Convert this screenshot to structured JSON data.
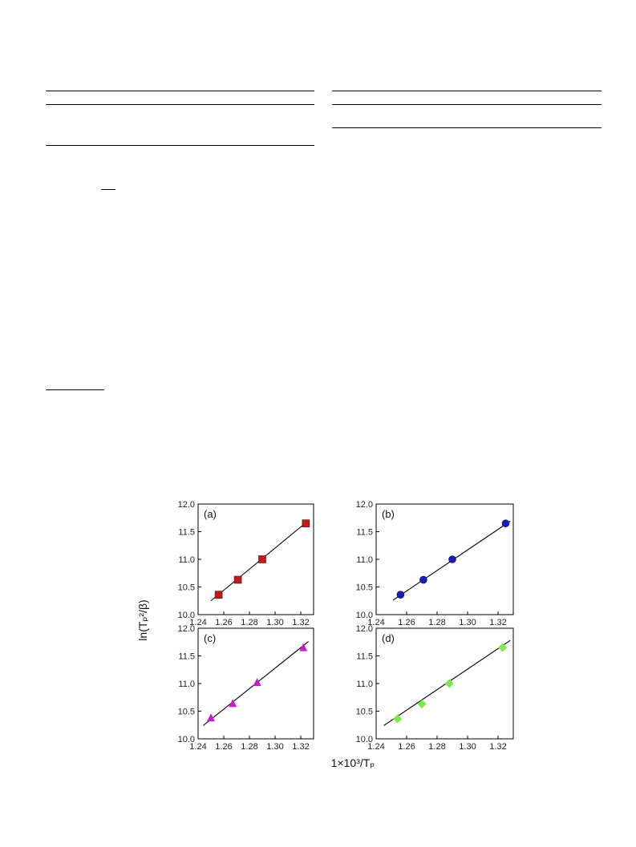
{
  "page": {
    "background": "#ffffff"
  },
  "chart_data": {
    "type": "scatter",
    "xlabel": "1×10³/Tₚ",
    "ylabel": "ln(Tₚ²/β)",
    "xlim": [
      1.24,
      1.33
    ],
    "ylim": [
      10.0,
      12.0
    ],
    "xticks": [
      "1.24",
      "1.26",
      "1.28",
      "1.30",
      "1.32"
    ],
    "yticks": [
      "10.0",
      "10.5",
      "11.0",
      "11.5",
      "12.0"
    ],
    "grid": false,
    "panels": [
      {
        "label": "(a)",
        "marker": "square",
        "color": "#c0191d",
        "x": [
          1.256,
          1.271,
          1.29,
          1.324
        ],
        "y": [
          10.36,
          10.63,
          11.0,
          11.65
        ],
        "fit": {
          "x": [
            1.25,
            1.326
          ],
          "y": [
            10.25,
            11.7
          ]
        }
      },
      {
        "label": "(b)",
        "marker": "circle",
        "color": "#1a1aba",
        "x": [
          1.256,
          1.271,
          1.29,
          1.325
        ],
        "y": [
          10.36,
          10.63,
          11.0,
          11.65
        ],
        "fit": {
          "x": [
            1.251,
            1.328
          ],
          "y": [
            10.26,
            11.69
          ]
        }
      },
      {
        "label": "(c)",
        "marker": "triangle",
        "color": "#c61cd0",
        "x": [
          1.25,
          1.267,
          1.286,
          1.322
        ],
        "y": [
          10.38,
          10.64,
          11.02,
          11.65
        ],
        "fit": {
          "x": [
            1.244,
            1.326
          ],
          "y": [
            10.24,
            11.76
          ]
        }
      },
      {
        "label": "(d)",
        "marker": "diamond",
        "color": "#7ee84a",
        "x": [
          1.254,
          1.27,
          1.288,
          1.323
        ],
        "y": [
          10.36,
          10.63,
          11.0,
          11.65
        ],
        "fit": {
          "x": [
            1.245,
            1.328
          ],
          "y": [
            10.24,
            11.78
          ]
        }
      }
    ]
  }
}
